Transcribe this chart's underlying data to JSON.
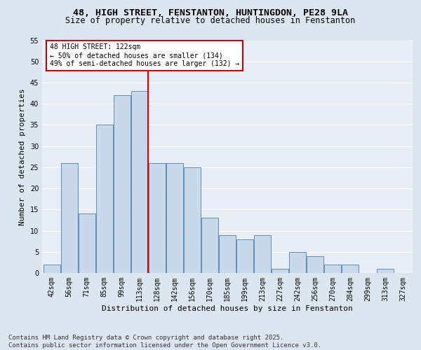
{
  "title_line1": "48, HIGH STREET, FENSTANTON, HUNTINGDON, PE28 9LA",
  "title_line2": "Size of property relative to detached houses in Fenstanton",
  "xlabel": "Distribution of detached houses by size in Fenstanton",
  "ylabel": "Number of detached properties",
  "categories": [
    "42sqm",
    "56sqm",
    "71sqm",
    "85sqm",
    "99sqm",
    "113sqm",
    "128sqm",
    "142sqm",
    "156sqm",
    "170sqm",
    "185sqm",
    "199sqm",
    "213sqm",
    "227sqm",
    "242sqm",
    "256sqm",
    "270sqm",
    "284sqm",
    "299sqm",
    "313sqm",
    "327sqm"
  ],
  "values": [
    2,
    26,
    14,
    35,
    42,
    43,
    26,
    26,
    25,
    13,
    9,
    8,
    9,
    1,
    5,
    4,
    2,
    2,
    0,
    1,
    0
  ],
  "bar_color": "#c9d9eb",
  "bar_edge_color": "#6090b8",
  "vline_position": 5.5,
  "vline_color": "#cc0000",
  "annotation_text": "48 HIGH STREET: 122sqm\n← 50% of detached houses are smaller (134)\n49% of semi-detached houses are larger (132) →",
  "annotation_box_color": "#ffffff",
  "annotation_box_edge": "#cc0000",
  "ylim": [
    0,
    55
  ],
  "yticks": [
    0,
    5,
    10,
    15,
    20,
    25,
    30,
    35,
    40,
    45,
    50,
    55
  ],
  "background_color": "#dce6f0",
  "plot_background_color": "#e8eef5",
  "grid_color": "#ffffff",
  "footer_line1": "Contains HM Land Registry data © Crown copyright and database right 2025.",
  "footer_line2": "Contains public sector information licensed under the Open Government Licence v3.0.",
  "title_fontsize": 9.5,
  "subtitle_fontsize": 8.5,
  "axis_label_fontsize": 8,
  "tick_fontsize": 7,
  "annotation_fontsize": 7,
  "footer_fontsize": 6.5
}
